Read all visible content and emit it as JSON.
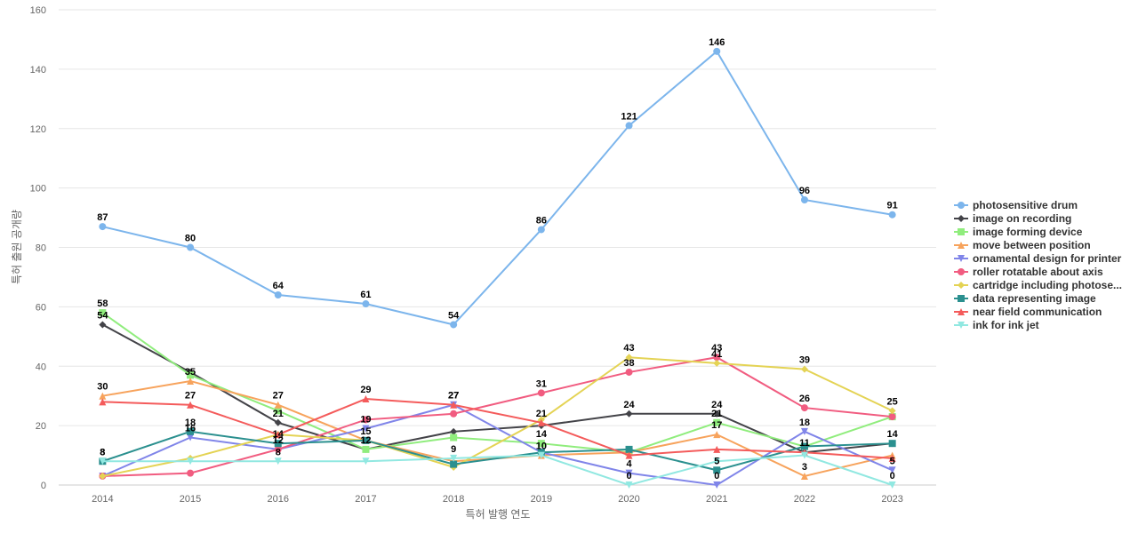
{
  "chart_data": {
    "type": "line",
    "xlabel": "특허 발행 연도",
    "ylabel": "특허 출원 공개량",
    "x": [
      "2014",
      "2015",
      "2016",
      "2017",
      "2018",
      "2019",
      "2020",
      "2021",
      "2022",
      "2023"
    ],
    "ylim": [
      0,
      160
    ],
    "yticks": [
      "0",
      "20",
      "40",
      "60",
      "80",
      "100",
      "120",
      "140",
      "160"
    ],
    "grid": true,
    "legend_position": "right",
    "series": [
      {
        "name": "photosensitive drum",
        "color": "#7cb5ec",
        "marker": "circle",
        "values": [
          87,
          80,
          64,
          61,
          54,
          86,
          121,
          146,
          96,
          91
        ]
      },
      {
        "name": "image on recording",
        "color": "#434348",
        "marker": "diamond",
        "values": [
          54,
          38,
          21,
          12,
          18,
          20,
          24,
          24,
          11,
          14
        ]
      },
      {
        "name": "image forming device",
        "color": "#90ed7d",
        "marker": "square",
        "values": [
          58,
          37,
          25,
          12,
          16,
          14,
          11,
          21,
          13,
          23
        ]
      },
      {
        "name": "move between position",
        "color": "#f7a35c",
        "marker": "triangle",
        "values": [
          30,
          35,
          27,
          15,
          8,
          10,
          11,
          17,
          3,
          10
        ]
      },
      {
        "name": "ornamental design for printer",
        "color": "#8085e9",
        "marker": "triangle-down",
        "values": [
          3,
          16,
          12,
          19,
          27,
          11,
          4,
          0,
          18,
          5
        ]
      },
      {
        "name": "roller rotatable about axis",
        "color": "#f15c80",
        "marker": "circle",
        "values": [
          3,
          4,
          12,
          22,
          24,
          31,
          38,
          43,
          26,
          23
        ]
      },
      {
        "name": "cartridge including photose...",
        "color": "#e4d354",
        "marker": "diamond",
        "values": [
          3,
          9,
          17,
          15,
          6,
          22,
          43,
          41,
          39,
          25
        ]
      },
      {
        "name": "data representing image",
        "color": "#2b908f",
        "marker": "square",
        "values": [
          8,
          18,
          14,
          15,
          7,
          11,
          12,
          5,
          13,
          14
        ]
      },
      {
        "name": "near field communication",
        "color": "#f45b5b",
        "marker": "triangle",
        "values": [
          28,
          27,
          17,
          29,
          27,
          21,
          10,
          12,
          11,
          9
        ]
      },
      {
        "name": "ink for ink jet",
        "color": "#91e8e1",
        "marker": "triangle-down",
        "values": [
          8,
          8,
          8,
          8,
          9,
          10,
          0,
          8,
          10,
          0
        ]
      }
    ],
    "data_labels": [
      {
        "series": 0,
        "points": [
          0,
          1,
          2,
          3,
          4,
          5,
          6,
          7,
          8,
          9
        ]
      },
      {
        "series": 1,
        "points": [
          0,
          2,
          3,
          6,
          7
        ]
      },
      {
        "series": 2,
        "points": [
          0,
          5,
          7
        ]
      },
      {
        "series": 3,
        "points": [
          0,
          1,
          2,
          7,
          8
        ]
      },
      {
        "series": 4,
        "points": [
          1,
          2,
          3,
          4,
          6,
          7,
          8,
          9
        ]
      },
      {
        "series": 5,
        "points": [
          5,
          6,
          7,
          8
        ]
      },
      {
        "series": 6,
        "points": [
          6,
          7,
          8,
          9
        ]
      },
      {
        "series": 7,
        "points": [
          0,
          1,
          2,
          3,
          7,
          9
        ]
      },
      {
        "series": 8,
        "points": [
          1,
          3,
          4,
          5,
          8
        ]
      },
      {
        "series": 9,
        "points": [
          0,
          2,
          4,
          5,
          6,
          9
        ]
      }
    ]
  }
}
